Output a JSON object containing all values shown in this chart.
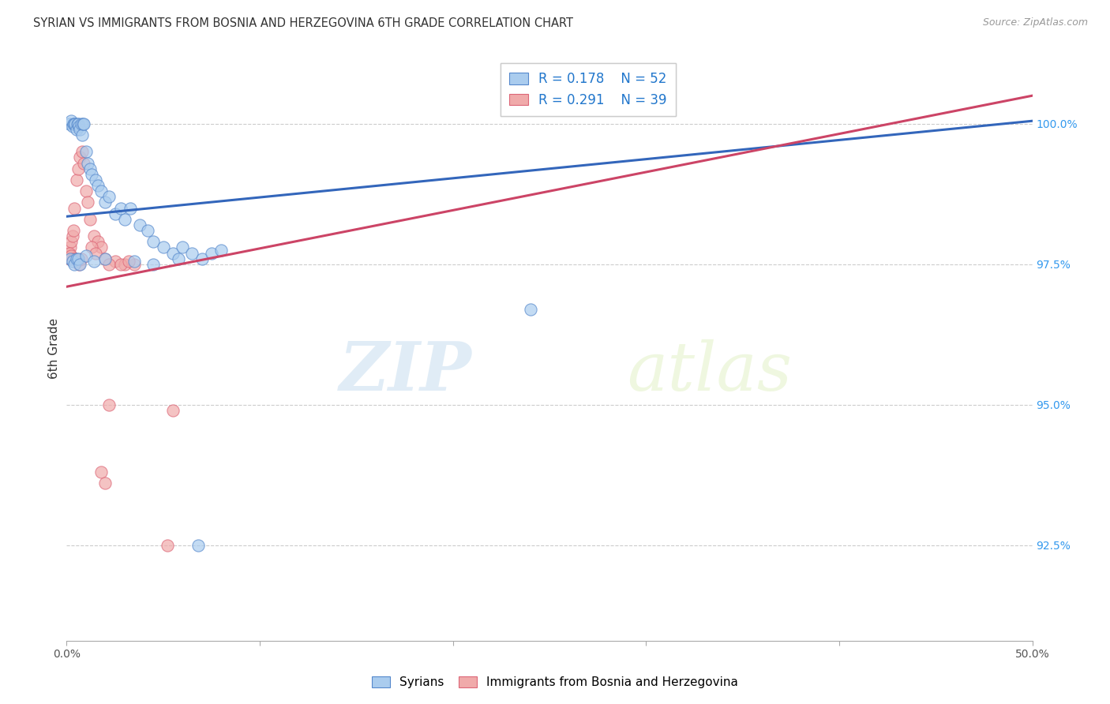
{
  "title": "SYRIAN VS IMMIGRANTS FROM BOSNIA AND HERZEGOVINA 6TH GRADE CORRELATION CHART",
  "source": "Source: ZipAtlas.com",
  "ylabel": "6th Grade",
  "ytick_values": [
    92.5,
    95.0,
    97.5,
    100.0
  ],
  "xmin": 0.0,
  "xmax": 50.0,
  "ymin": 90.8,
  "ymax": 101.2,
  "legend_label1": "Syrians",
  "legend_label2": "Immigrants from Bosnia and Herzegovina",
  "r1": "0.178",
  "n1": "52",
  "r2": "0.291",
  "n2": "39",
  "blue_color": "#aaccee",
  "pink_color": "#f0aaaa",
  "blue_edge_color": "#5588cc",
  "pink_edge_color": "#dd6677",
  "blue_line_color": "#3366bb",
  "pink_line_color": "#cc4466",
  "blue_line_x0": 0.0,
  "blue_line_y0": 98.35,
  "blue_line_x1": 50.0,
  "blue_line_y1": 100.05,
  "pink_line_x0": 0.0,
  "pink_line_y0": 97.1,
  "pink_line_x1": 50.0,
  "pink_line_y1": 100.5,
  "blue_scatter_x": [
    0.15,
    0.25,
    0.3,
    0.35,
    0.4,
    0.45,
    0.5,
    0.55,
    0.6,
    0.65,
    0.7,
    0.75,
    0.8,
    0.85,
    0.9,
    1.0,
    1.1,
    1.2,
    1.3,
    1.5,
    1.6,
    1.8,
    2.0,
    2.2,
    2.5,
    2.8,
    3.0,
    3.3,
    3.8,
    4.2,
    4.5,
    5.0,
    5.5,
    6.0,
    6.5,
    7.0,
    7.5,
    8.0,
    0.2,
    0.3,
    0.4,
    0.5,
    0.6,
    0.7,
    1.0,
    1.4,
    2.0,
    3.5,
    4.5,
    5.8,
    24.0,
    6.8
  ],
  "blue_scatter_y": [
    100.0,
    100.05,
    99.95,
    100.0,
    100.0,
    100.0,
    99.9,
    100.0,
    100.0,
    99.95,
    99.9,
    100.0,
    99.8,
    100.0,
    100.0,
    99.5,
    99.3,
    99.2,
    99.1,
    99.0,
    98.9,
    98.8,
    98.6,
    98.7,
    98.4,
    98.5,
    98.3,
    98.5,
    98.2,
    98.1,
    97.9,
    97.8,
    97.7,
    97.8,
    97.7,
    97.6,
    97.7,
    97.75,
    97.6,
    97.55,
    97.5,
    97.6,
    97.6,
    97.5,
    97.65,
    97.55,
    97.6,
    97.55,
    97.5,
    97.6,
    96.7,
    92.5
  ],
  "pink_scatter_x": [
    0.1,
    0.15,
    0.2,
    0.25,
    0.3,
    0.35,
    0.4,
    0.5,
    0.6,
    0.7,
    0.8,
    0.9,
    1.0,
    1.1,
    1.2,
    1.4,
    1.6,
    1.8,
    2.0,
    2.5,
    3.0,
    3.5,
    0.15,
    0.25,
    0.35,
    0.45,
    0.55,
    0.65,
    0.75,
    1.3,
    1.5,
    2.2,
    2.8,
    3.2,
    5.5,
    1.8,
    2.0,
    2.2,
    5.2
  ],
  "pink_scatter_y": [
    97.7,
    97.6,
    97.8,
    97.9,
    98.0,
    98.1,
    98.5,
    99.0,
    99.2,
    99.4,
    99.5,
    99.3,
    98.8,
    98.6,
    98.3,
    98.0,
    97.9,
    97.8,
    97.6,
    97.55,
    97.5,
    97.5,
    97.7,
    97.65,
    97.6,
    97.6,
    97.55,
    97.5,
    97.6,
    97.8,
    97.7,
    97.5,
    97.5,
    97.55,
    94.9,
    93.8,
    93.6,
    95.0,
    92.5
  ],
  "watermark_zip": "ZIP",
  "watermark_atlas": "atlas",
  "background_color": "#ffffff",
  "grid_color": "#cccccc",
  "marker_size": 120
}
